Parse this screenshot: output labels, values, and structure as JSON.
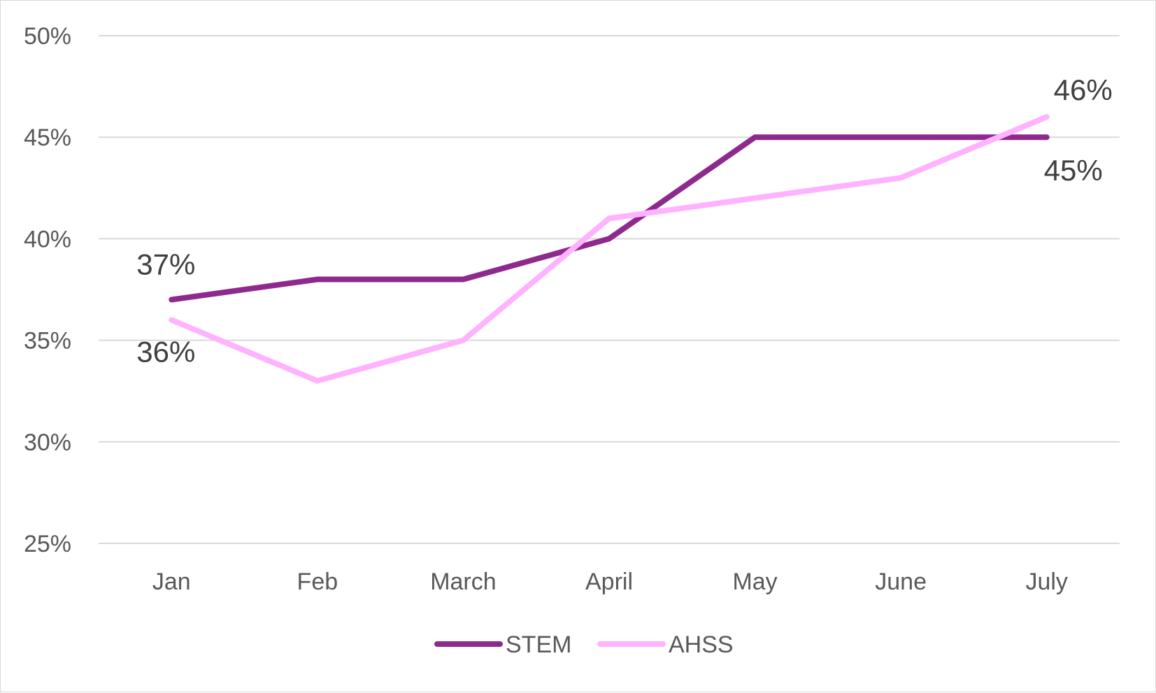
{
  "chart_data": {
    "type": "line",
    "categories": [
      "Jan",
      "Feb",
      "March",
      "April",
      "May",
      "June",
      "July"
    ],
    "series": [
      {
        "name": "STEM",
        "values": [
          37,
          38,
          38,
          40,
          45,
          45,
          45
        ],
        "color": "#8E2A8E"
      },
      {
        "name": "AHSS",
        "values": [
          36,
          33,
          35,
          41,
          42,
          43,
          46
        ],
        "color": "#FFB3FF"
      }
    ],
    "ylim": [
      25,
      50
    ],
    "y_ticks": [
      "25%",
      "30%",
      "35%",
      "40%",
      "45%",
      "50%"
    ],
    "y_tick_values": [
      25,
      30,
      35,
      40,
      45,
      50
    ],
    "data_labels": [
      {
        "series": "STEM",
        "category": "Jan",
        "text": "37%"
      },
      {
        "series": "AHSS",
        "category": "Jan",
        "text": "36%"
      },
      {
        "series": "AHSS",
        "category": "July",
        "text": "46%"
      },
      {
        "series": "STEM",
        "category": "July",
        "text": "45%"
      }
    ],
    "title": "",
    "xlabel": "",
    "ylabel": "",
    "grid": true,
    "gridline_color": "#d9d9d9",
    "legend": {
      "placement": "bottom",
      "entries": [
        "STEM",
        "AHSS"
      ]
    }
  }
}
